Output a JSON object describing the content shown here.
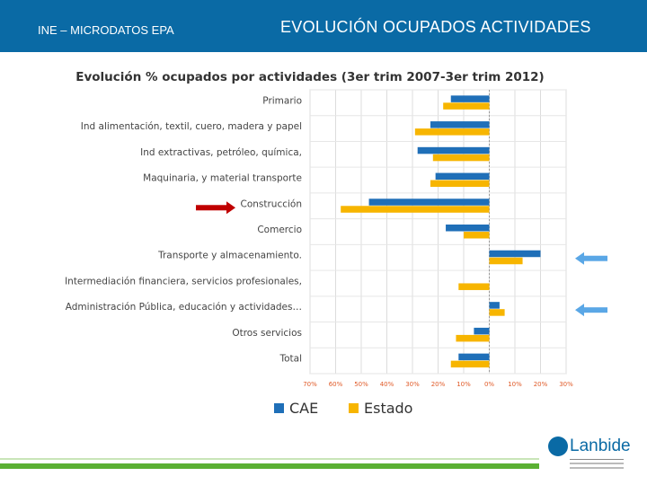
{
  "header": {
    "left_label": "INE – MICRODATOS EPA",
    "title": "EVOLUCIÓN OCUPADOS ACTIVIDADES"
  },
  "logo": {
    "text": "Lanbide"
  },
  "colors": {
    "header_bg": "#0a6aa5",
    "series_cae": "#1f6fb8",
    "series_estado": "#f7b500",
    "construction_arrow": "#c00000",
    "highlight_arrow": "#5aa7e6",
    "footer_green": "#5bb033"
  },
  "chart_data": {
    "type": "bar",
    "orientation": "horizontal",
    "title": "Evolución % ocupados por actividades (3er trim 2007-3er trim 2012)",
    "categories": [
      "Primario",
      "Ind alimentación, textil, cuero, madera y papel",
      "Ind extractivas, petróleo, química,",
      "Maquinaria, y material transporte",
      "Construcción",
      "Comercio",
      "Transporte y almacenamiento.",
      "Intermediación financiera, servicios profesionales,",
      "Administración Pública, educación y actividades…",
      "Otros servicios",
      "Total"
    ],
    "series": [
      {
        "name": "CAE",
        "values": [
          -15,
          -23,
          -28,
          -21,
          -47,
          -17,
          20,
          0,
          4,
          -6,
          -12
        ]
      },
      {
        "name": "Estado",
        "values": [
          -18,
          -29,
          -22,
          -23,
          -58,
          -10,
          13,
          -12,
          6,
          -13,
          -15
        ]
      }
    ],
    "xlim": [
      -70,
      30
    ],
    "x_ticks": [
      "70%",
      "60%",
      "50%",
      "40%",
      "30%",
      "20%",
      "10%",
      "0%",
      "10%",
      "20%",
      "30%"
    ],
    "x_tick_values": [
      -70,
      -60,
      -50,
      -40,
      -30,
      -20,
      -10,
      0,
      10,
      20,
      30
    ],
    "grid": true,
    "legend": "bottom",
    "annotations": {
      "red_arrow_category": "Construcción",
      "blue_arrow_categories": [
        "Transporte y almacenamiento.",
        "Administración Pública, educación y actividades…"
      ]
    }
  }
}
